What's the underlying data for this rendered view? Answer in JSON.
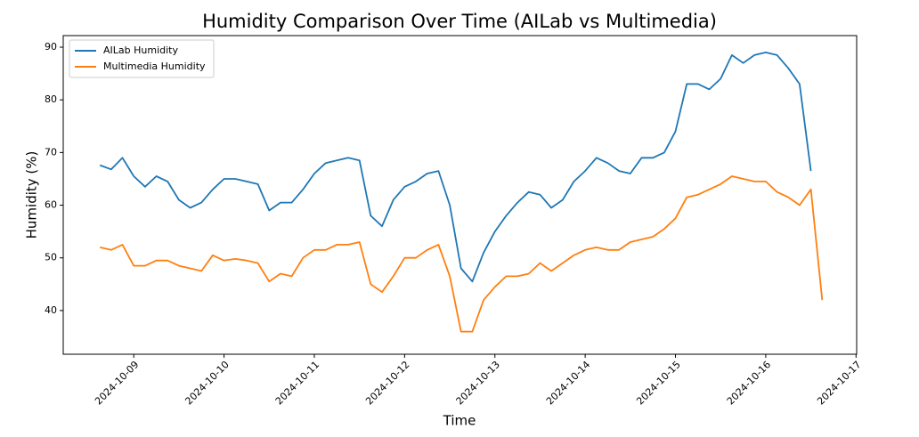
{
  "chart_data": {
    "type": "line",
    "title": "Humidity Comparison Over Time (AILab vs Multimedia)",
    "x_label": "Time",
    "y_label": "Humidity (%)",
    "x": [
      "2024-10-08T15:00",
      "2024-10-08T18:00",
      "2024-10-08T21:00",
      "2024-10-09T00:00",
      "2024-10-09T03:00",
      "2024-10-09T06:00",
      "2024-10-09T09:00",
      "2024-10-09T12:00",
      "2024-10-09T15:00",
      "2024-10-09T18:00",
      "2024-10-09T21:00",
      "2024-10-10T00:00",
      "2024-10-10T03:00",
      "2024-10-10T06:00",
      "2024-10-10T09:00",
      "2024-10-10T12:00",
      "2024-10-10T15:00",
      "2024-10-10T18:00",
      "2024-10-10T21:00",
      "2024-10-11T00:00",
      "2024-10-11T03:00",
      "2024-10-11T06:00",
      "2024-10-11T09:00",
      "2024-10-11T12:00",
      "2024-10-11T15:00",
      "2024-10-11T18:00",
      "2024-10-11T21:00",
      "2024-10-12T00:00",
      "2024-10-12T03:00",
      "2024-10-12T06:00",
      "2024-10-12T09:00",
      "2024-10-12T12:00",
      "2024-10-12T15:00",
      "2024-10-12T18:00",
      "2024-10-12T21:00",
      "2024-10-13T00:00",
      "2024-10-13T03:00",
      "2024-10-13T06:00",
      "2024-10-13T09:00",
      "2024-10-13T12:00",
      "2024-10-13T15:00",
      "2024-10-13T18:00",
      "2024-10-13T21:00",
      "2024-10-14T00:00",
      "2024-10-14T03:00",
      "2024-10-14T06:00",
      "2024-10-14T09:00",
      "2024-10-14T12:00",
      "2024-10-14T15:00",
      "2024-10-14T18:00",
      "2024-10-14T21:00",
      "2024-10-15T00:00",
      "2024-10-15T03:00",
      "2024-10-15T06:00",
      "2024-10-15T09:00",
      "2024-10-15T12:00",
      "2024-10-15T15:00",
      "2024-10-15T18:00",
      "2024-10-15T21:00",
      "2024-10-16T00:00",
      "2024-10-16T03:00",
      "2024-10-16T06:00",
      "2024-10-16T09:00",
      "2024-10-16T12:00",
      "2024-10-16T15:00"
    ],
    "series": [
      {
        "name": "AILab Humidity",
        "color": "#1f77b4",
        "values": [
          67.6,
          66.8,
          69,
          65.5,
          63.5,
          65.5,
          64.5,
          61,
          59.5,
          60.5,
          63,
          65,
          65,
          64.5,
          64,
          59,
          60.5,
          60.5,
          63,
          66,
          68,
          68.5,
          69,
          68.5,
          58,
          56,
          61,
          63.5,
          64.5,
          66,
          66.5,
          60,
          48,
          45.5,
          51,
          55,
          58,
          60.5,
          62.5,
          62,
          59.5,
          61,
          64.5,
          66.5,
          69,
          68,
          66.5,
          66,
          69,
          69,
          70,
          74,
          83,
          83,
          82,
          84,
          88.5,
          87,
          88.5,
          89,
          88.5,
          86,
          83,
          66.5,
          null
        ]
      },
      {
        "name": "Multimedia Humidity",
        "color": "#ff7f0e",
        "values": [
          52,
          51.5,
          52.5,
          48.5,
          48.5,
          49.5,
          49.5,
          48.5,
          48,
          47.5,
          50.5,
          49.5,
          49.8,
          49.5,
          49,
          45.5,
          47,
          46.5,
          50,
          51.5,
          51.5,
          52.5,
          52.5,
          53,
          45,
          43.5,
          46.5,
          50,
          50,
          51.5,
          52.5,
          46.5,
          36,
          36,
          42,
          44.5,
          46.5,
          46.5,
          47,
          49,
          47.5,
          49,
          50.5,
          51.5,
          52,
          51.5,
          51.5,
          53,
          53.5,
          54,
          55.5,
          57.5,
          61.5,
          62,
          63,
          64,
          65.5,
          65,
          64.5,
          64.5,
          62.5,
          61.5,
          60,
          63,
          42
        ]
      }
    ],
    "xlim": [
      "2024-10-08T05:15",
      "2024-10-17T00:10"
    ],
    "xticks": [
      "2024-10-09",
      "2024-10-10",
      "2024-10-11",
      "2024-10-12",
      "2024-10-13",
      "2024-10-14",
      "2024-10-15",
      "2024-10-16",
      "2024-10-17"
    ],
    "ylim": [
      31.7,
      92.2
    ],
    "yticks": [
      40,
      50,
      60,
      70,
      80,
      90
    ],
    "legend": "upper left"
  }
}
